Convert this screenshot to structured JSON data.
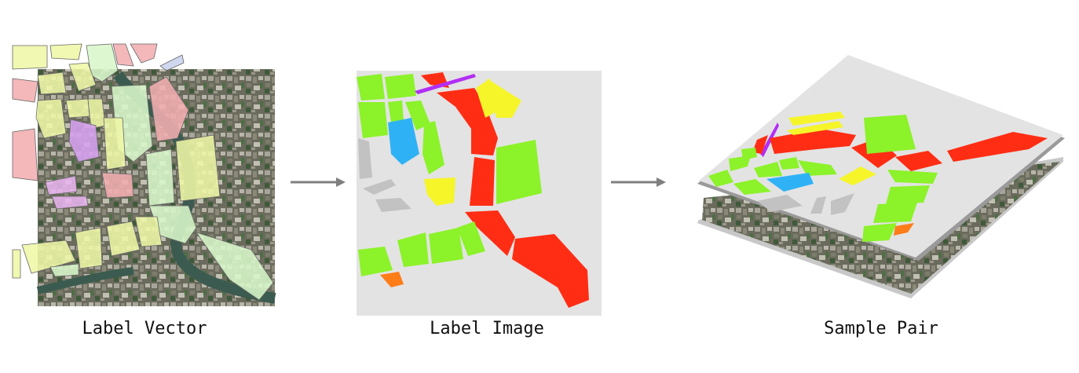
{
  "captions": {
    "label_vector": "Label Vector",
    "label_image": "Label Image",
    "sample_pair": "Sample Pair"
  },
  "colors": {
    "arrow": "#7f7f7f",
    "label_image_background": "#e3e3e3",
    "red": "#ff2d14",
    "green": "#8cf22a",
    "yellow": "#f5f52a",
    "blue": "#2fb2f5",
    "purple": "#b22ef5",
    "orange": "#ff7d19",
    "gray": "#bfbfbf",
    "satellite_base": "#5f6150",
    "vector_yellow": "#eef7a6",
    "vector_pink": "#f3aeb0",
    "vector_purple": "#d7a2f0",
    "vector_mint": "#d8f7c9"
  },
  "icons": [
    "arrow-right-icon",
    "arrow-right-icon"
  ]
}
